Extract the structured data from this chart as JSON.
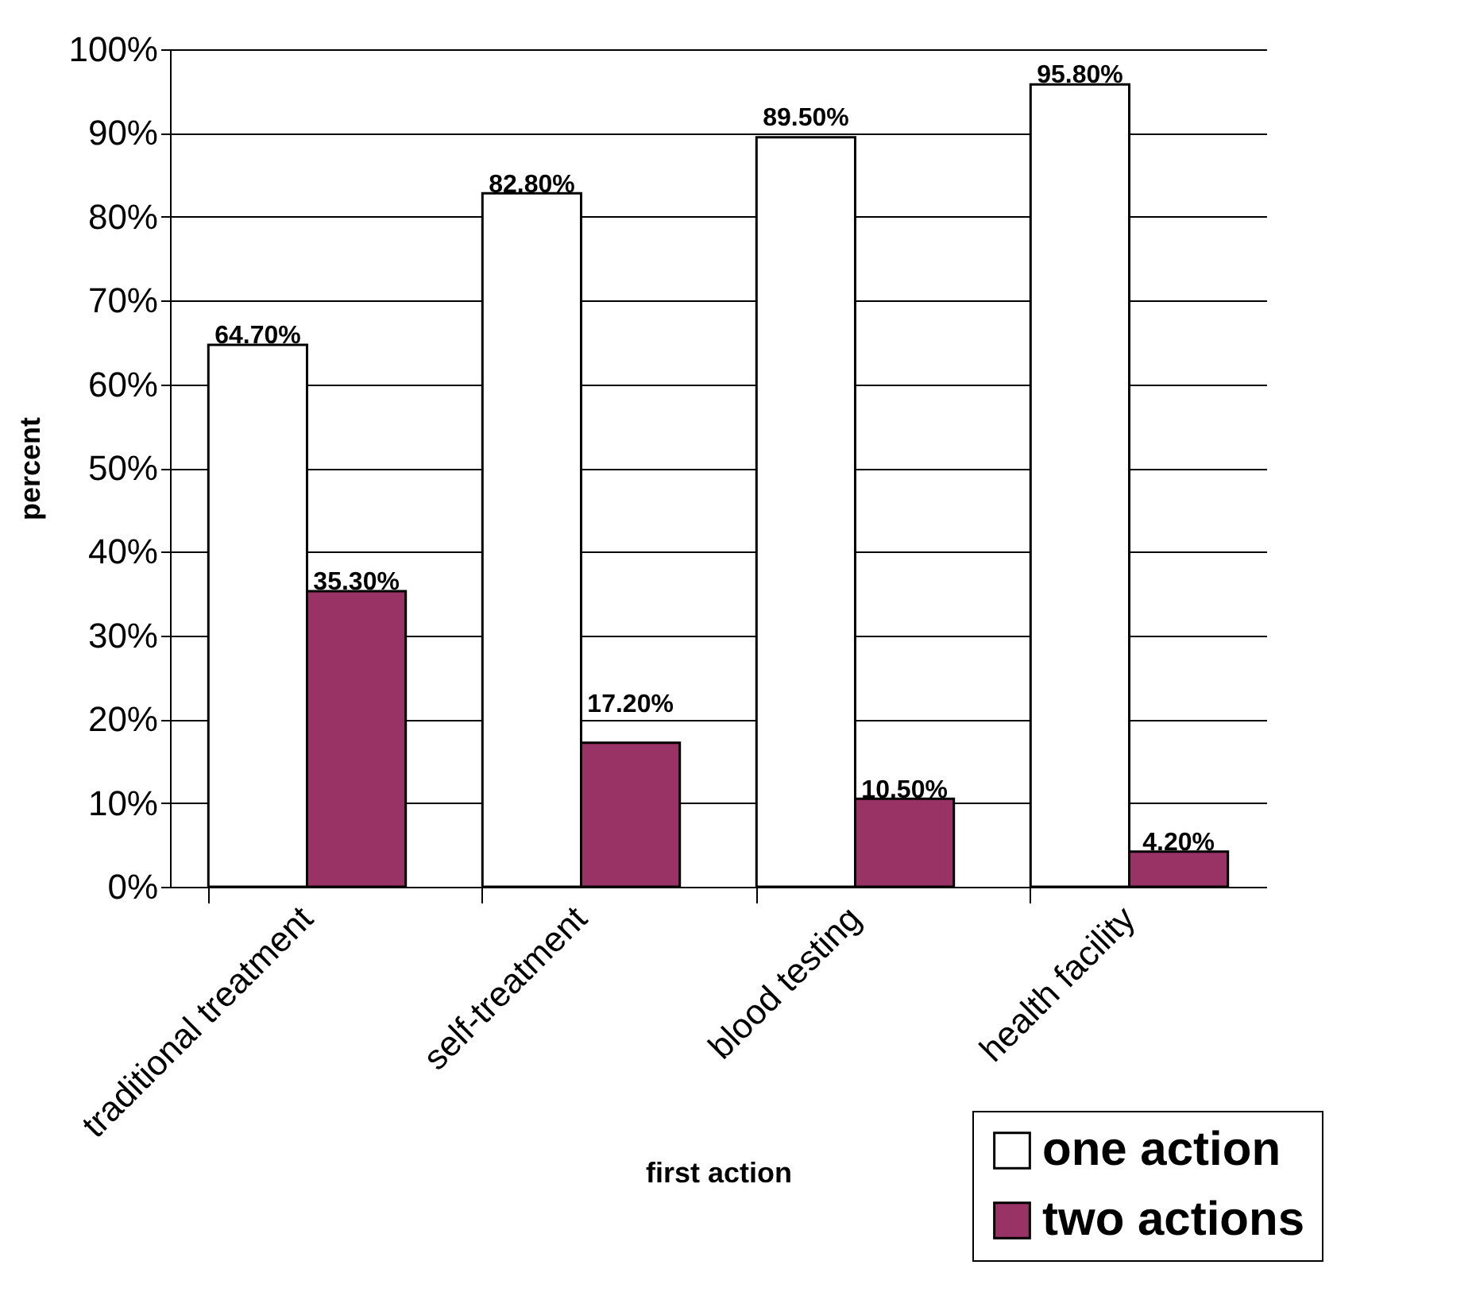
{
  "chart_data": {
    "type": "bar",
    "xlabel": "first action",
    "ylabel": "percent",
    "categories": [
      "traditional treatment",
      "self-treatment",
      "blood testing",
      "health facility"
    ],
    "series": [
      {
        "name": "one action",
        "color": "#ffffff",
        "values": [
          64.7,
          82.8,
          89.5,
          95.8
        ],
        "value_labels": [
          "64.70%",
          "82.80%",
          "89.50%",
          "95.80%"
        ]
      },
      {
        "name": "two actions",
        "color": "#993366",
        "values": [
          35.3,
          17.2,
          10.5,
          4.2
        ],
        "value_labels": [
          "35.30%",
          "17.20%",
          "10.50%",
          "4.20%"
        ]
      }
    ],
    "ylim": [
      0,
      100
    ],
    "yticks": [
      {
        "value": 0,
        "label": "0%"
      },
      {
        "value": 10,
        "label": "10%"
      },
      {
        "value": 20,
        "label": "20%"
      },
      {
        "value": 30,
        "label": "30%"
      },
      {
        "value": 40,
        "label": "40%"
      },
      {
        "value": 50,
        "label": "50%"
      },
      {
        "value": 60,
        "label": "60%"
      },
      {
        "value": 70,
        "label": "70%"
      },
      {
        "value": 80,
        "label": "80%"
      },
      {
        "value": 90,
        "label": "90%"
      },
      {
        "value": 100,
        "label": "100%"
      }
    ],
    "grid": "y",
    "legend": "bottom right"
  }
}
